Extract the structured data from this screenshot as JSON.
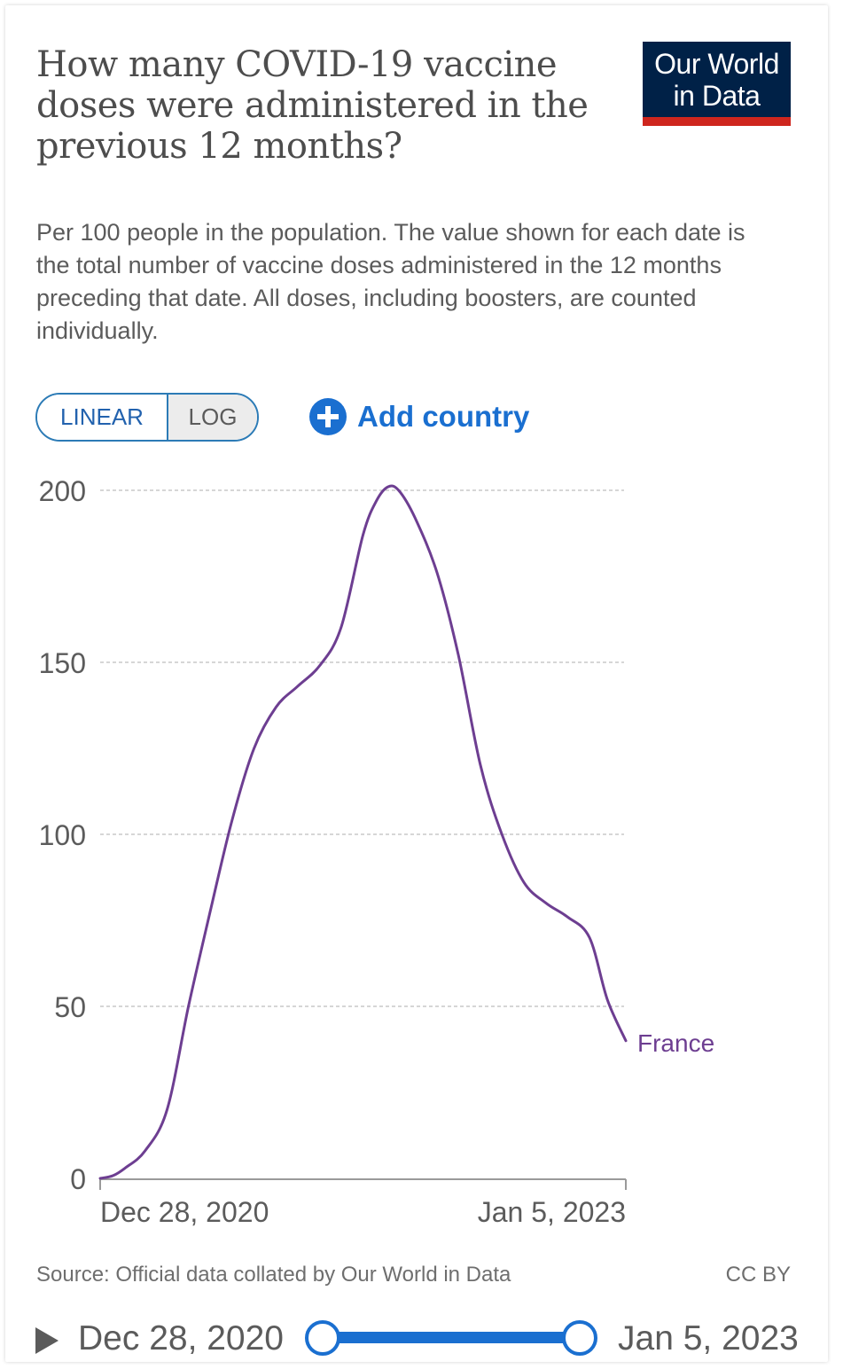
{
  "header": {
    "title": "How many COVID-19 vaccine doses were administered in the previous 12 months?",
    "subtitle": "Per 100 people in the population. The value shown for each date is the total number of vaccine doses administered in the 12 months preceding that date. All doses, including boosters, are counted individually.",
    "logo_line1": "Our World",
    "logo_line2": "in Data",
    "logo_colors": {
      "background": "#002147",
      "stripe": "#ce261e"
    }
  },
  "controls": {
    "scale_linear": "LINEAR",
    "scale_log": "LOG",
    "selected_scale": "LINEAR",
    "add_country": "Add country",
    "add_icon": "plus-circle-icon"
  },
  "chart_data": {
    "type": "line",
    "title": "How many COVID-19 vaccine doses were administered in the previous 12 months?",
    "xlabel": "",
    "ylabel": "",
    "x_tick_labels": [
      "Dec 28, 2020",
      "Jan 5, 2023"
    ],
    "x_range": [
      "2020-12-28",
      "2023-01-05"
    ],
    "ylim": [
      0,
      200
    ],
    "y_ticks": [
      0,
      50,
      100,
      150,
      200
    ],
    "grid": "horizontal dashed",
    "series": [
      {
        "name": "France",
        "color": "#6d3e91",
        "points": [
          [
            "2020-12-28",
            0
          ],
          [
            "2021-01-15",
            0.8
          ],
          [
            "2021-02-01",
            3
          ],
          [
            "2021-03-01",
            8
          ],
          [
            "2021-04-01",
            20
          ],
          [
            "2021-05-01",
            50
          ],
          [
            "2021-06-01",
            78
          ],
          [
            "2021-07-01",
            104
          ],
          [
            "2021-08-01",
            125
          ],
          [
            "2021-09-01",
            137
          ],
          [
            "2021-10-01",
            143
          ],
          [
            "2021-11-01",
            149
          ],
          [
            "2021-12-01",
            160
          ],
          [
            "2022-01-01",
            187
          ],
          [
            "2022-01-20",
            197
          ],
          [
            "2022-02-05",
            201
          ],
          [
            "2022-02-20",
            200
          ],
          [
            "2022-03-15",
            192
          ],
          [
            "2022-04-15",
            176
          ],
          [
            "2022-05-15",
            152
          ],
          [
            "2022-06-15",
            120
          ],
          [
            "2022-07-15",
            100
          ],
          [
            "2022-08-15",
            86
          ],
          [
            "2022-09-15",
            80
          ],
          [
            "2022-10-15",
            76
          ],
          [
            "2022-11-15",
            70
          ],
          [
            "2022-12-10",
            52
          ],
          [
            "2023-01-05",
            40
          ]
        ]
      }
    ]
  },
  "footer": {
    "source": "Source: Official data collated by Our World in Data",
    "license": "CC BY"
  },
  "timeline": {
    "start_label": "Dec 28, 2020",
    "end_label": "Jan 5, 2023",
    "play_icon": "play-icon"
  }
}
